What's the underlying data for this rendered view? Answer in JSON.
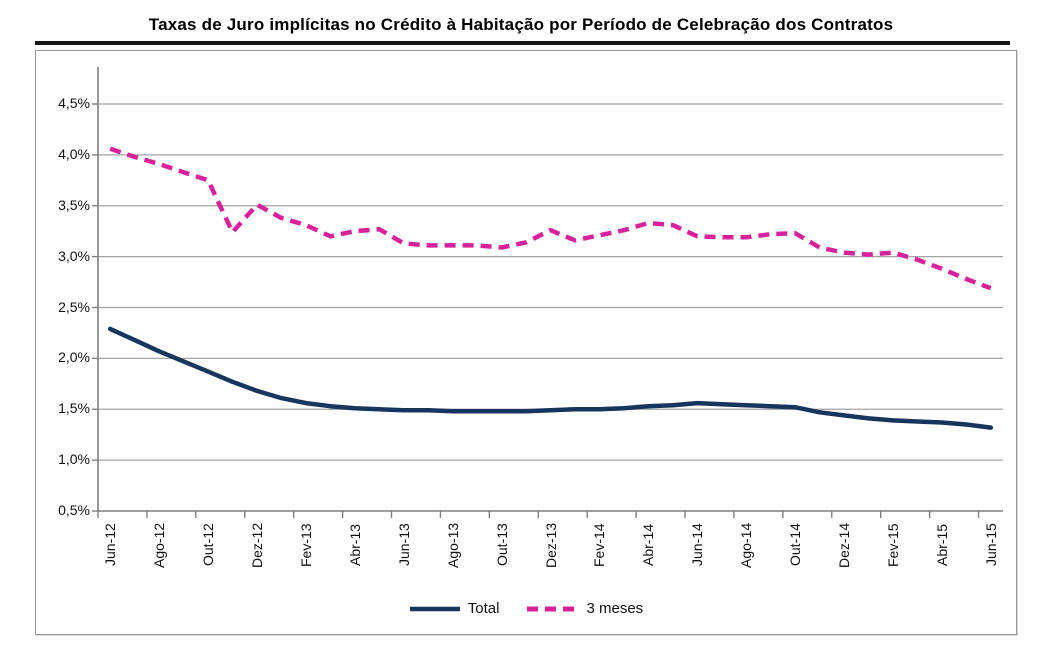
{
  "chart_data": {
    "type": "line",
    "title": "Taxas de Juro implícitas no Crédito à Habitação por Período de Celebração dos Contratos",
    "xlabel": "",
    "ylabel": "",
    "ylim": [
      0.5,
      4.88
    ],
    "grid": true,
    "legend_position": "bottom-center",
    "x": [
      "Jun-12",
      "Jul-12",
      "Ago-12",
      "Set-12",
      "Out-12",
      "Nov-12",
      "Dez-12",
      "Jan-13",
      "Fev-13",
      "Mar-13",
      "Abr-13",
      "Mai-13",
      "Jun-13",
      "Jul-13",
      "Ago-13",
      "Set-13",
      "Out-13",
      "Nov-13",
      "Dez-13",
      "Jan-14",
      "Fev-14",
      "Mar-14",
      "Abr-14",
      "Mai-14",
      "Jun-14",
      "Jul-14",
      "Ago-14",
      "Set-14",
      "Out-14",
      "Nov-14",
      "Dez-14",
      "Jan-15",
      "Fev-15",
      "Mar-15",
      "Abr-15",
      "Mai-15",
      "Jun-15"
    ],
    "x_tick_labels": [
      "Jun-12",
      "Ago-12",
      "Out-12",
      "Dez-12",
      "Fev-13",
      "Abr-13",
      "Jun-13",
      "Ago-13",
      "Out-13",
      "Dez-13",
      "Fev-14",
      "Abr-14",
      "Jun-14",
      "Ago-14",
      "Out-14",
      "Dez-14",
      "Fev-15",
      "Abr-15",
      "Jun-15"
    ],
    "y_tick_values": [
      0.5,
      1.0,
      1.5,
      2.0,
      2.5,
      3.0,
      3.5,
      4.0,
      4.5
    ],
    "y_tick_labels": [
      "0,5%",
      "1,0%",
      "1,5%",
      "2,0%",
      "2,5%",
      "3,0%",
      "3,5%",
      "4,0%",
      "4,5%"
    ],
    "series": [
      {
        "name": "Total",
        "style": "solid",
        "color": "#17365D",
        "values": [
          2.29,
          2.18,
          2.07,
          1.97,
          1.87,
          1.77,
          1.68,
          1.61,
          1.56,
          1.53,
          1.51,
          1.5,
          1.49,
          1.49,
          1.48,
          1.48,
          1.48,
          1.48,
          1.49,
          1.5,
          1.5,
          1.51,
          1.53,
          1.54,
          1.56,
          1.55,
          1.54,
          1.53,
          1.52,
          1.47,
          1.44,
          1.41,
          1.39,
          1.38,
          1.37,
          1.35,
          1.32
        ]
      },
      {
        "name": "3 meses",
        "style": "dashed",
        "color": "#D9219C",
        "values": [
          4.06,
          3.98,
          3.91,
          3.83,
          3.75,
          3.24,
          3.51,
          3.38,
          3.31,
          3.2,
          3.25,
          3.27,
          3.13,
          3.11,
          3.11,
          3.11,
          3.09,
          3.14,
          3.26,
          3.16,
          3.21,
          3.26,
          3.33,
          3.31,
          3.2,
          3.19,
          3.19,
          3.22,
          3.23,
          3.09,
          3.04,
          3.02,
          3.04,
          2.97,
          2.88,
          2.78,
          2.69
        ]
      }
    ],
    "colors": {
      "gridline": "#A3A3A3",
      "axis": "#7F7F7F",
      "figure_border": "#979797",
      "title_rule": "#161616"
    }
  }
}
